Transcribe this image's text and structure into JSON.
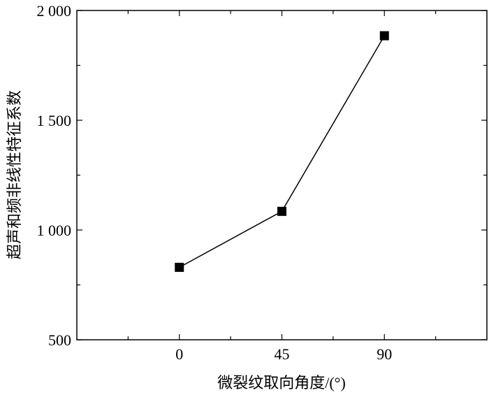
{
  "chart_data": {
    "type": "line",
    "x": [
      0,
      45,
      90
    ],
    "y": [
      830,
      1085,
      1885
    ],
    "xlabel": "微裂纹取向角度/(°)",
    "ylabel": "超声和频非线性特征系数",
    "xlim": [
      -45,
      135
    ],
    "ylim": [
      500,
      2000
    ],
    "x_ticks": [
      0,
      45,
      90
    ],
    "x_tick_labels": [
      "0",
      "45",
      "90"
    ],
    "y_ticks": [
      500,
      1000,
      1500,
      2000
    ],
    "y_tick_labels": [
      "500",
      "1 000",
      "1 500",
      "2 000"
    ],
    "grid": false,
    "marker": "square",
    "line_color": "#000000",
    "marker_color": "#000000"
  }
}
